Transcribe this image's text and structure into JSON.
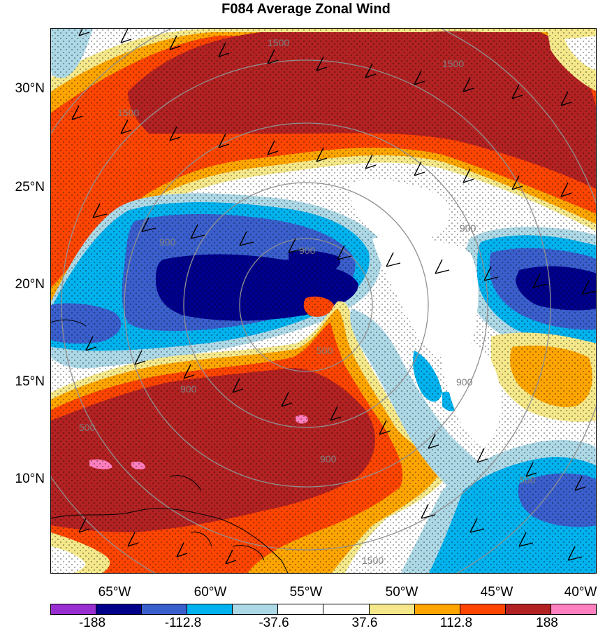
{
  "title": "F084 Average Zonal Wind",
  "lat_labels": [
    "30°N",
    "25°N",
    "20°N",
    "15°N",
    "10°N"
  ],
  "lon_labels": [
    "65°W",
    "60°W",
    "55°W",
    "50°W",
    "45°W",
    "40°W"
  ],
  "contour_labels": [
    "1500",
    "1500",
    "1500",
    "900",
    "900",
    "900",
    "900",
    "900",
    "900",
    "500",
    "500",
    "500",
    "1500"
  ],
  "colorbar": {
    "colors": [
      "#9a2fd1",
      "#00008b",
      "#3a5fcd",
      "#00b2ee",
      "#add8e6",
      "#ffffff",
      "#ffffff",
      "#f5e88a",
      "#ffa500",
      "#ff4500",
      "#b22222",
      "#ff7fbf"
    ],
    "labels": [
      "-188",
      "-112.8",
      "-37.6",
      "37.6",
      "112.8",
      "188"
    ]
  },
  "map_colors": {
    "darkred": "#b22222",
    "orange_red": "#ff4500",
    "orange": "#ffa500",
    "yellow": "#f5e88a",
    "light_blue": "#add8e6",
    "sky": "#00b2ee",
    "blue": "#3a5fcd",
    "navy": "#00008b",
    "pink": "#ff7fbf"
  }
}
